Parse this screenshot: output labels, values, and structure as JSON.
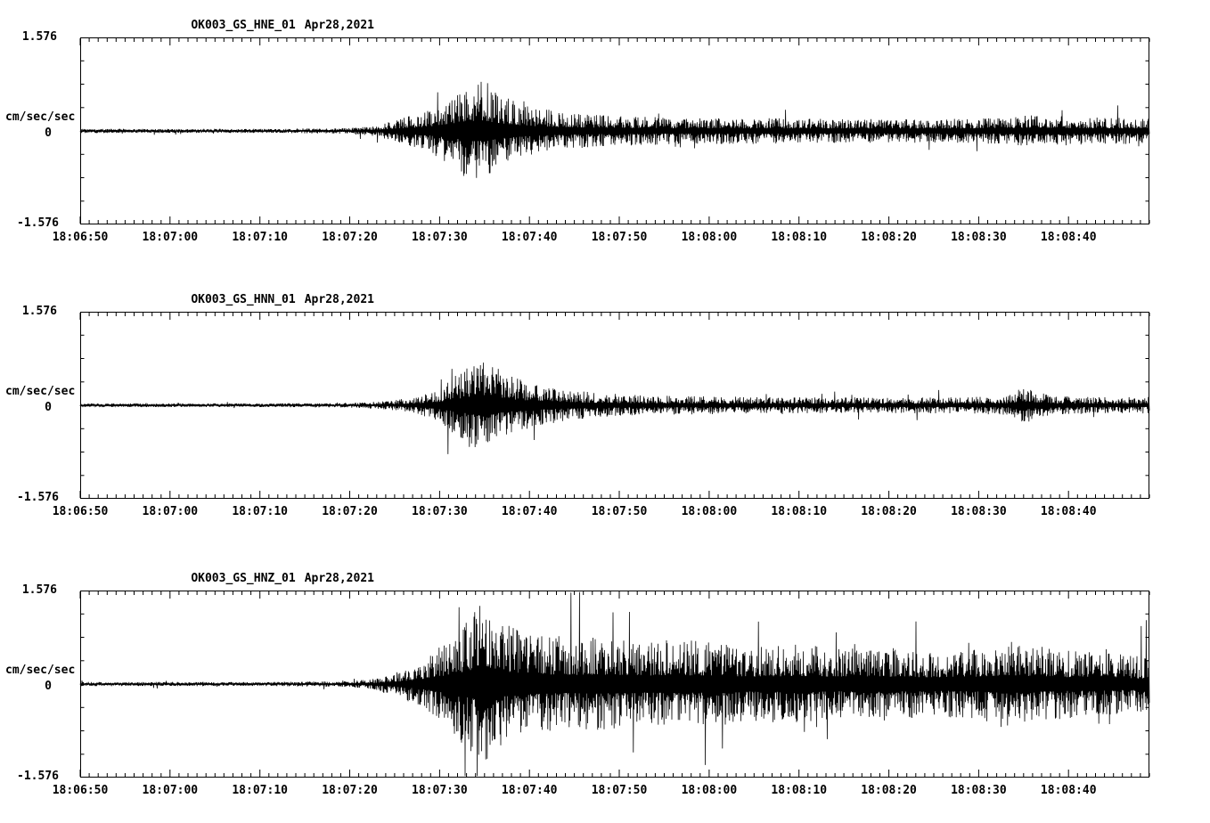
{
  "page": {
    "background": "#ffffff",
    "trace_color": "#000000"
  },
  "chart_data": [
    {
      "type": "line",
      "kind": "seismogram",
      "title": "OK003_GS_HNE_01",
      "date": "Apr28,2021",
      "ylabel": "cm/sec/sec",
      "ylim": [
        -1.576,
        1.576
      ],
      "ytick_labels": {
        "top": "1.576",
        "zero": "0",
        "bottom": "-1.576"
      },
      "duration_seconds": 119,
      "x_tick_interval_seconds": 10,
      "x_start": "18:06:50",
      "x_tick_labels": [
        "18:06:50",
        "18:07:00",
        "18:07:10",
        "18:07:20",
        "18:07:30",
        "18:07:40",
        "18:07:50",
        "18:08:00",
        "18:08:10",
        "18:08:20",
        "18:08:30",
        "18:08:40"
      ],
      "grid": false,
      "legend": false,
      "envelope": {
        "t_seconds": [
          0,
          20,
          30,
          33,
          36,
          39,
          41,
          43,
          45,
          47,
          50,
          53,
          57,
          62,
          68,
          75,
          85,
          95,
          102,
          106,
          110,
          115,
          119
        ],
        "amplitude_cm_s2": [
          0.035,
          0.035,
          0.05,
          0.09,
          0.22,
          0.38,
          0.55,
          0.8,
          0.85,
          0.6,
          0.42,
          0.33,
          0.27,
          0.24,
          0.22,
          0.22,
          0.2,
          0.2,
          0.22,
          0.27,
          0.24,
          0.22,
          0.22
        ]
      }
    },
    {
      "type": "line",
      "kind": "seismogram",
      "title": "OK003_GS_HNN_01",
      "date": "Apr28,2021",
      "ylabel": "cm/sec/sec",
      "ylim": [
        -1.576,
        1.576
      ],
      "ytick_labels": {
        "top": "1.576",
        "zero": "0",
        "bottom": "-1.576"
      },
      "duration_seconds": 119,
      "x_tick_interval_seconds": 10,
      "x_start": "18:06:50",
      "x_tick_labels": [
        "18:06:50",
        "18:07:00",
        "18:07:10",
        "18:07:20",
        "18:07:30",
        "18:07:40",
        "18:07:50",
        "18:08:00",
        "18:08:10",
        "18:08:20",
        "18:08:30",
        "18:08:40"
      ],
      "grid": false,
      "legend": false,
      "envelope": {
        "t_seconds": [
          0,
          20,
          30,
          34,
          37,
          40,
          42,
          44,
          46,
          48,
          51,
          54,
          58,
          63,
          70,
          80,
          90,
          98,
          103,
          105,
          108,
          113,
          119
        ],
        "amplitude_cm_s2": [
          0.03,
          0.03,
          0.04,
          0.07,
          0.13,
          0.3,
          0.55,
          0.78,
          0.7,
          0.5,
          0.35,
          0.27,
          0.2,
          0.17,
          0.15,
          0.14,
          0.13,
          0.14,
          0.16,
          0.32,
          0.16,
          0.14,
          0.14
        ]
      }
    },
    {
      "type": "line",
      "kind": "seismogram",
      "title": "OK003_GS_HNZ_01",
      "date": "Apr28,2021",
      "ylabel": "cm/sec/sec",
      "ylim": [
        -1.576,
        1.576
      ],
      "ytick_labels": {
        "top": "1.576",
        "zero": "0",
        "bottom": "-1.576"
      },
      "duration_seconds": 119,
      "x_tick_interval_seconds": 10,
      "x_start": "18:06:50",
      "x_tick_labels": [
        "18:06:50",
        "18:07:00",
        "18:07:10",
        "18:07:20",
        "18:07:30",
        "18:07:40",
        "18:07:50",
        "18:08:00",
        "18:08:10",
        "18:08:20",
        "18:08:30",
        "18:08:40"
      ],
      "grid": false,
      "legend": false,
      "envelope": {
        "t_seconds": [
          0,
          20,
          30,
          33,
          36,
          39,
          41,
          43,
          45,
          47,
          50,
          54,
          58,
          62,
          66,
          70,
          75,
          80,
          85,
          90,
          95,
          100,
          103,
          106,
          110,
          115,
          119
        ],
        "amplitude_cm_s2": [
          0.035,
          0.035,
          0.05,
          0.1,
          0.25,
          0.5,
          0.75,
          1.1,
          1.45,
          1.05,
          0.85,
          0.75,
          0.8,
          0.7,
          0.75,
          0.72,
          0.62,
          0.68,
          0.6,
          0.62,
          0.55,
          0.62,
          0.75,
          0.65,
          0.58,
          0.52,
          0.45
        ]
      }
    }
  ]
}
